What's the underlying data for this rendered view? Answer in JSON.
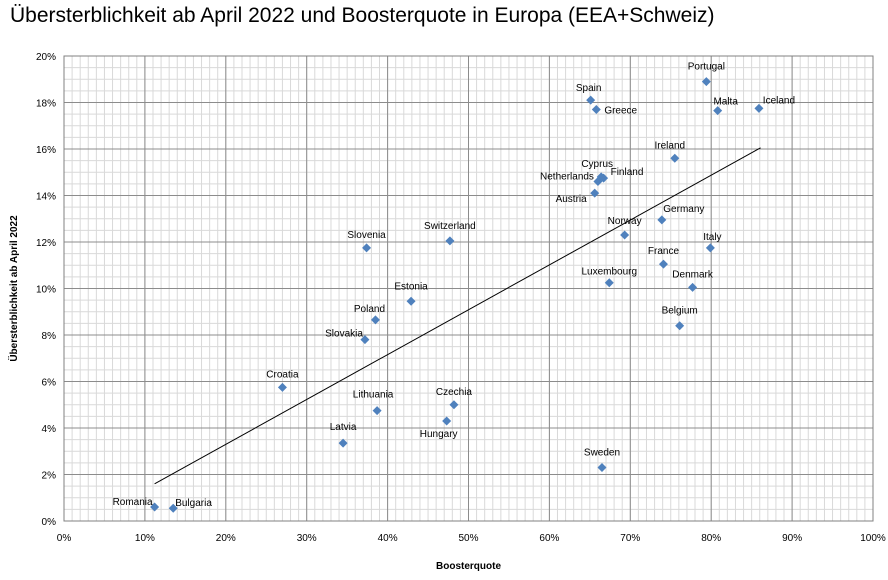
{
  "chart_data": {
    "type": "scatter",
    "title": "Übersterblichkeit ab April 2022  und Boosterquote in Europa (EEA+Schweiz)",
    "xlabel": "Boosterquote",
    "ylabel": "Übersterblichkeit ab April 2022",
    "xlim": [
      0,
      1
    ],
    "ylim": [
      0,
      0.2
    ],
    "x_ticks": [
      "0%",
      "10%",
      "20%",
      "30%",
      "40%",
      "50%",
      "60%",
      "70%",
      "80%",
      "90%",
      "100%"
    ],
    "y_ticks": [
      "0%",
      "2%",
      "4%",
      "6%",
      "8%",
      "10%",
      "12%",
      "14%",
      "16%",
      "18%",
      "20%"
    ],
    "grid": true,
    "marker_color": "#4f81bd",
    "trendline": {
      "x": [
        0.112,
        0.861
      ],
      "y": [
        0.016,
        0.1605
      ]
    },
    "points": [
      {
        "label": "Portugal",
        "x": 0.794,
        "y": 0.189
      },
      {
        "label": "Spain",
        "x": 0.651,
        "y": 0.181
      },
      {
        "label": "Greece",
        "x": 0.658,
        "y": 0.177
      },
      {
        "label": "Malta",
        "x": 0.808,
        "y": 0.1765
      },
      {
        "label": "Iceland",
        "x": 0.859,
        "y": 0.1775
      },
      {
        "label": "Ireland",
        "x": 0.755,
        "y": 0.156
      },
      {
        "label": "Cyprus",
        "x": 0.664,
        "y": 0.148
      },
      {
        "label": "Finland",
        "x": 0.667,
        "y": 0.1475
      },
      {
        "label": "Netherlands",
        "x": 0.66,
        "y": 0.146
      },
      {
        "label": "Austria",
        "x": 0.656,
        "y": 0.141
      },
      {
        "label": "Germany",
        "x": 0.739,
        "y": 0.1295
      },
      {
        "label": "Switzerland",
        "x": 0.477,
        "y": 0.1205
      },
      {
        "label": "Slovenia",
        "x": 0.374,
        "y": 0.1175
      },
      {
        "label": "Norway",
        "x": 0.693,
        "y": 0.123
      },
      {
        "label": "Italy",
        "x": 0.799,
        "y": 0.1175
      },
      {
        "label": "France",
        "x": 0.741,
        "y": 0.1105
      },
      {
        "label": "Luxembourg",
        "x": 0.674,
        "y": 0.1025
      },
      {
        "label": "Denmark",
        "x": 0.777,
        "y": 0.1005
      },
      {
        "label": "Estonia",
        "x": 0.429,
        "y": 0.0945
      },
      {
        "label": "Poland",
        "x": 0.385,
        "y": 0.0865
      },
      {
        "label": "Belgium",
        "x": 0.761,
        "y": 0.084
      },
      {
        "label": "Slovakia",
        "x": 0.372,
        "y": 0.078
      },
      {
        "label": "Croatia",
        "x": 0.27,
        "y": 0.0575
      },
      {
        "label": "Czechia",
        "x": 0.482,
        "y": 0.05
      },
      {
        "label": "Lithuania",
        "x": 0.387,
        "y": 0.0475
      },
      {
        "label": "Hungary",
        "x": 0.473,
        "y": 0.043
      },
      {
        "label": "Latvia",
        "x": 0.345,
        "y": 0.0335
      },
      {
        "label": "Sweden",
        "x": 0.665,
        "y": 0.023
      },
      {
        "label": "Romania",
        "x": 0.112,
        "y": 0.006
      },
      {
        "label": "Bulgaria",
        "x": 0.135,
        "y": 0.0055
      }
    ]
  }
}
